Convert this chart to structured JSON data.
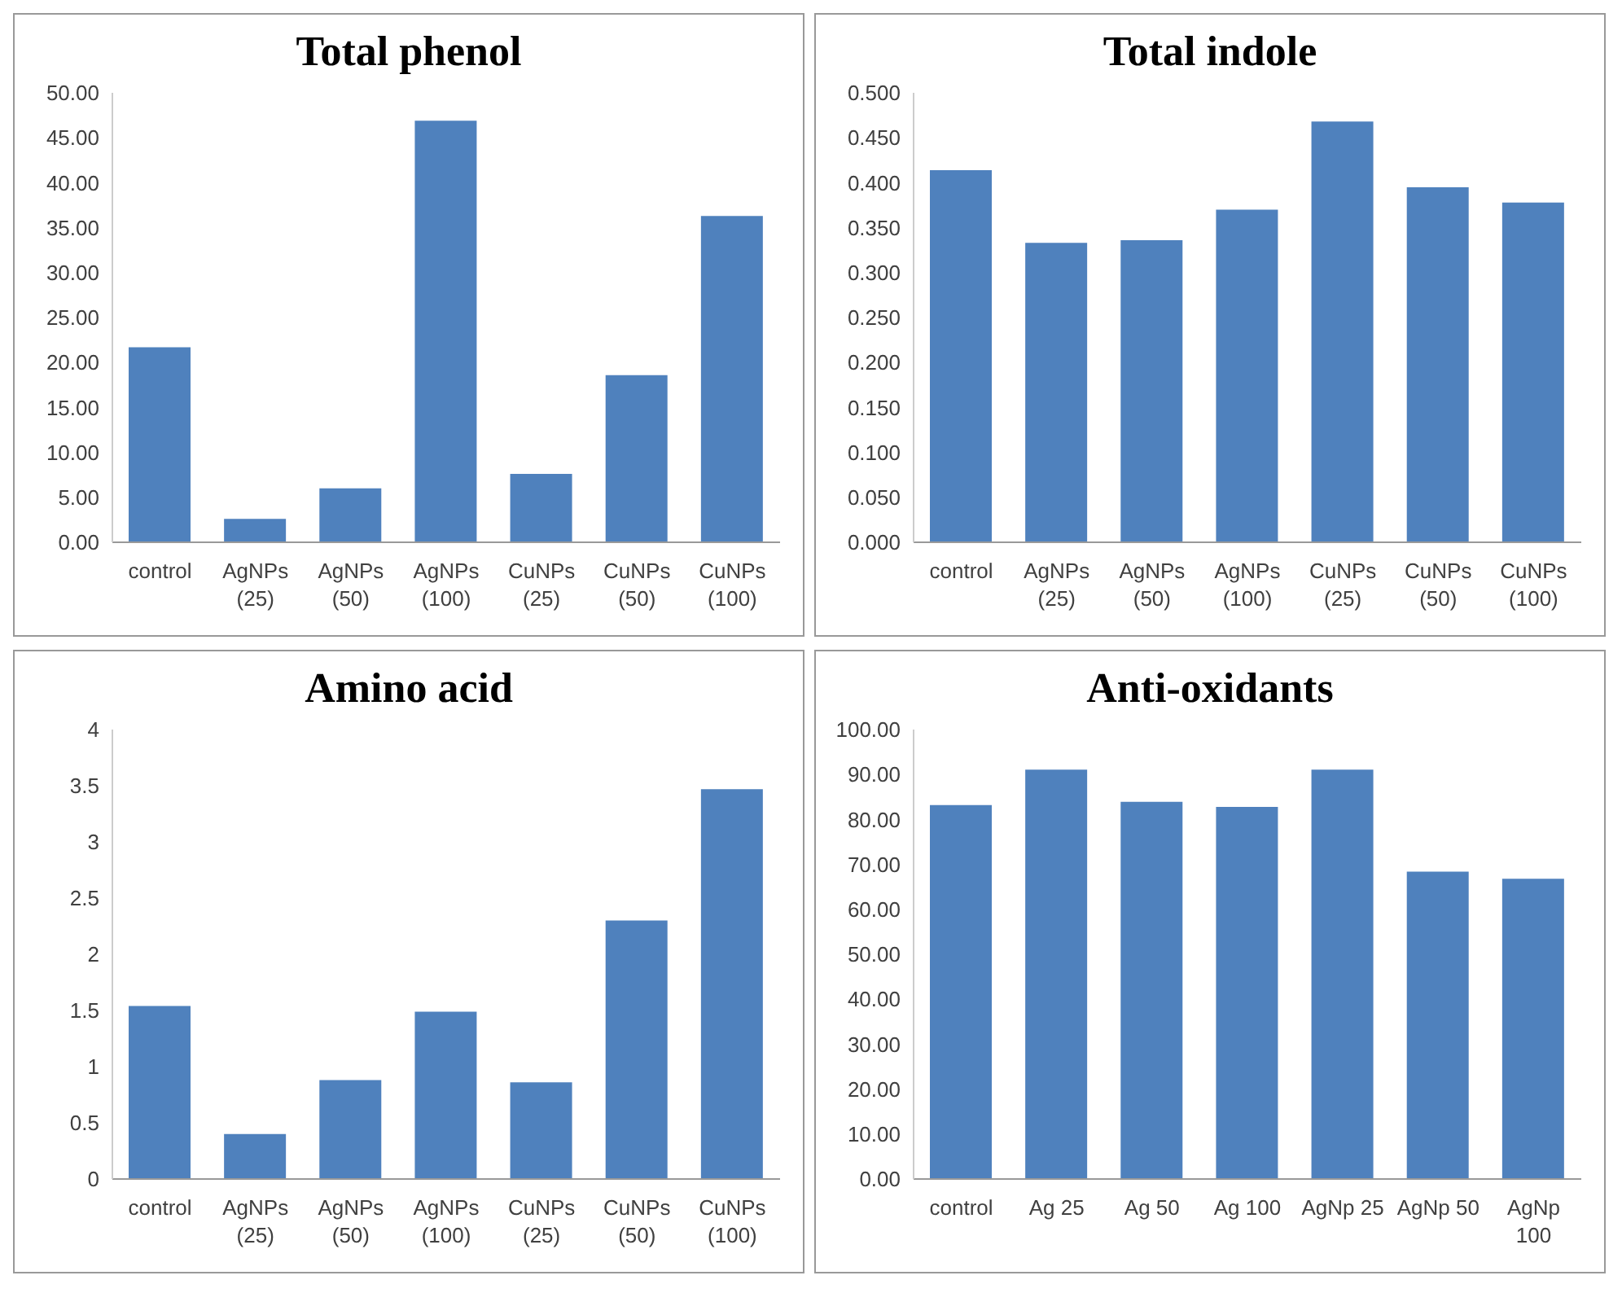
{
  "chart_data": [
    {
      "type": "bar",
      "title": "Total phenol",
      "categories": [
        "control",
        "AgNPs (25)",
        "AgNPs (50)",
        "AgNPs (100)",
        "CuNPs (25)",
        "CuNPs (50)",
        "CuNPs (100)"
      ],
      "values": [
        21.7,
        2.6,
        6.0,
        46.9,
        7.6,
        18.6,
        36.3
      ],
      "color": "#4f81bd",
      "ylim": [
        0,
        50
      ],
      "yticks": [
        {
          "value": 0,
          "label": "0.00"
        },
        {
          "value": 5,
          "label": "5.00"
        },
        {
          "value": 10,
          "label": "10.00"
        },
        {
          "value": 15,
          "label": "15.00"
        },
        {
          "value": 20,
          "label": "20.00"
        },
        {
          "value": 25,
          "label": "25.00"
        },
        {
          "value": 30,
          "label": "30.00"
        },
        {
          "value": 35,
          "label": "35.00"
        },
        {
          "value": 40,
          "label": "40.00"
        },
        {
          "value": 45,
          "label": "45.00"
        },
        {
          "value": 50,
          "label": "50.00"
        }
      ]
    },
    {
      "type": "bar",
      "title": "Total indole",
      "categories": [
        "control",
        "AgNPs (25)",
        "AgNPs (50)",
        "AgNPs (100)",
        "CuNPs (25)",
        "CuNPs (50)",
        "CuNPs (100)"
      ],
      "values": [
        0.414,
        0.333,
        0.336,
        0.37,
        0.468,
        0.395,
        0.378
      ],
      "color": "#4f81bd",
      "ylim": [
        0,
        0.5
      ],
      "yticks": [
        {
          "value": 0,
          "label": "0.000"
        },
        {
          "value": 0.05,
          "label": "0.050"
        },
        {
          "value": 0.1,
          "label": "0.100"
        },
        {
          "value": 0.15,
          "label": "0.150"
        },
        {
          "value": 0.2,
          "label": "0.200"
        },
        {
          "value": 0.25,
          "label": "0.250"
        },
        {
          "value": 0.3,
          "label": "0.300"
        },
        {
          "value": 0.35,
          "label": "0.350"
        },
        {
          "value": 0.4,
          "label": "0.400"
        },
        {
          "value": 0.45,
          "label": "0.450"
        },
        {
          "value": 0.5,
          "label": "0.500"
        }
      ]
    },
    {
      "type": "bar",
      "title": "Amino acid",
      "categories": [
        "control",
        "AgNPs (25)",
        "AgNPs (50)",
        "AgNPs (100)",
        "CuNPs (25)",
        "CuNPs (50)",
        "CuNPs (100)"
      ],
      "values": [
        1.54,
        0.4,
        0.88,
        1.49,
        0.86,
        2.3,
        3.47
      ],
      "color": "#4f81bd",
      "ylim": [
        0,
        4
      ],
      "yticks": [
        0,
        0.5,
        1,
        1.5,
        2,
        2.5,
        3,
        3.5,
        4
      ]
    },
    {
      "type": "bar",
      "title": "Anti-oxidants",
      "categories": [
        "control",
        "Ag 25",
        "Ag 50",
        "Ag 100",
        "AgNp 25",
        "AgNp 50",
        "AgNp 100"
      ],
      "values": [
        83.2,
        91.1,
        83.9,
        82.8,
        91.1,
        68.4,
        66.8
      ],
      "color": "#4f81bd",
      "ylim": [
        0,
        100
      ],
      "yticks": [
        {
          "value": 0,
          "label": "0.00"
        },
        {
          "value": 10,
          "label": "10.00"
        },
        {
          "value": 20,
          "label": "20.00"
        },
        {
          "value": 30,
          "label": "30.00"
        },
        {
          "value": 40,
          "label": "40.00"
        },
        {
          "value": 50,
          "label": "50.00"
        },
        {
          "value": 60,
          "label": "60.00"
        },
        {
          "value": 70,
          "label": "70.00"
        },
        {
          "value": 80,
          "label": "80.00"
        },
        {
          "value": 90,
          "label": "90.00"
        },
        {
          "value": 100,
          "label": "100.00"
        }
      ]
    }
  ]
}
